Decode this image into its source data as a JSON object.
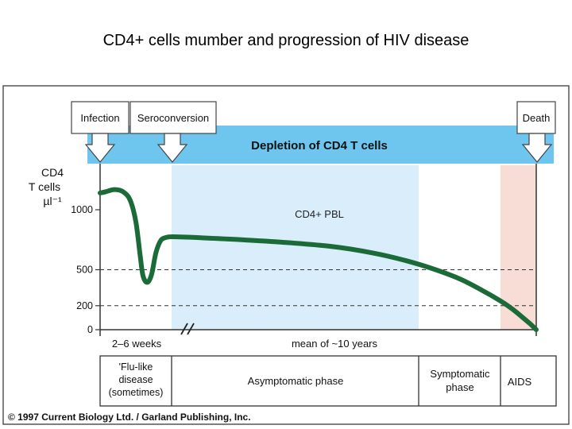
{
  "page": {
    "title": "CD4+ cells mumber and progression of HIV disease",
    "copyright": "© 1997 Current Biology Ltd. / Garland Publishing, Inc."
  },
  "events": {
    "infection": "Infection",
    "seroconversion": "Seroconversion",
    "death": "Death"
  },
  "banner": "Depletion of CD4 T cells",
  "colors": {
    "banner": "#6ec6ef",
    "asymptomatic_bg": "#d9eefa",
    "aids_bg": "#f8dcd6",
    "curve": "#1a6b38"
  },
  "chart_data": {
    "type": "line",
    "title": "",
    "ylabel": [
      "CD4",
      "T cells",
      "µl⁻¹"
    ],
    "yticks": [
      0,
      200,
      500,
      1000
    ],
    "reference_lines": [
      200,
      500
    ],
    "ylim": [
      0,
      1180
    ],
    "region_label": "CD4+ PBL",
    "series": [
      {
        "name": "CD4+ PBL",
        "points": [
          {
            "t": 0.0,
            "v": 1140
          },
          {
            "t": 0.08,
            "v": 1150
          },
          {
            "t": 0.2,
            "v": 1168
          },
          {
            "t": 0.32,
            "v": 1150
          },
          {
            "t": 0.42,
            "v": 1080
          },
          {
            "t": 0.5,
            "v": 900
          },
          {
            "t": 0.56,
            "v": 620
          },
          {
            "t": 0.6,
            "v": 450
          },
          {
            "t": 0.66,
            "v": 395
          },
          {
            "t": 0.72,
            "v": 460
          },
          {
            "t": 0.78,
            "v": 640
          },
          {
            "t": 0.85,
            "v": 745
          },
          {
            "t": 0.93,
            "v": 770
          },
          {
            "t": 1.0,
            "v": 775
          },
          {
            "t": 1.3,
            "v": 772
          },
          {
            "t": 2.4,
            "v": 755
          },
          {
            "t": 3.6,
            "v": 730
          },
          {
            "t": 4.8,
            "v": 695
          },
          {
            "t": 5.8,
            "v": 640
          },
          {
            "t": 6.6,
            "v": 575
          },
          {
            "t": 7.3,
            "v": 500
          },
          {
            "t": 7.9,
            "v": 420
          },
          {
            "t": 8.4,
            "v": 330
          },
          {
            "t": 8.8,
            "v": 250
          },
          {
            "t": 9.1,
            "v": 180
          },
          {
            "t": 9.35,
            "v": 110
          },
          {
            "t": 9.55,
            "v": 50
          },
          {
            "t": 9.7,
            "v": 0
          }
        ]
      }
    ],
    "x_segments": [
      {
        "label": "2–6 weeks"
      },
      {
        "label": "mean of ~10 years"
      }
    ]
  },
  "phases": [
    {
      "lines": [
        "'Flu-like",
        "disease",
        "(sometimes)"
      ]
    },
    {
      "lines": [
        "Asymptomatic phase"
      ]
    },
    {
      "lines": [
        "Symptomatic",
        "phase"
      ]
    },
    {
      "lines": [
        "AIDS"
      ]
    }
  ]
}
